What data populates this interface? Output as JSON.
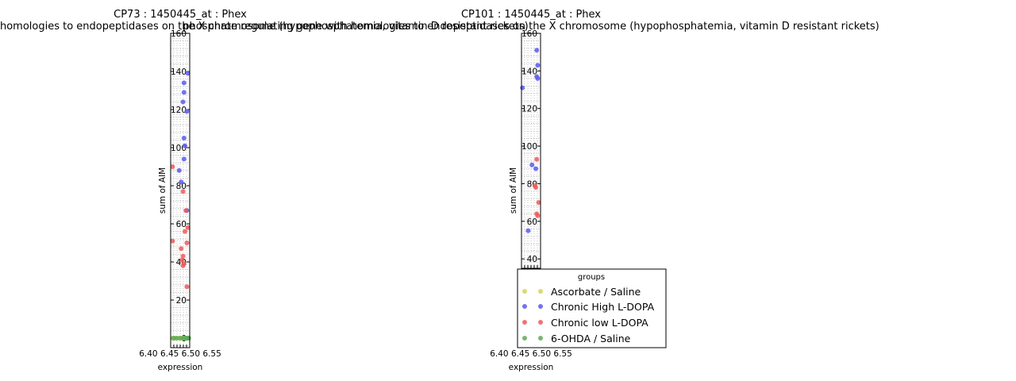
{
  "chart_data": [
    {
      "type": "scatter",
      "title": "CP73 : 1450445_at : Phex",
      "subtitle": "phosphate regulating gene with homologies to endopeptidases on the X chromosome (hypophosphatemia, vitamin D resistant rickets)",
      "xlabel": "expression",
      "ylabel": "sum of AIM",
      "ylim": [
        -5,
        160
      ],
      "yticks": [
        0,
        20,
        40,
        60,
        80,
        100,
        120,
        140,
        160
      ],
      "xlim": [
        6.38,
        6.58
      ],
      "xticks_text": "6.40 6.45 6.50 6.55",
      "grid": true,
      "series": [
        {
          "name": "Ascorbate / Saline",
          "color": "#d4d45a",
          "points": [
            [
              6.4,
              0
            ],
            [
              6.42,
              0
            ],
            [
              6.45,
              0
            ],
            [
              6.47,
              0
            ],
            [
              6.5,
              0
            ],
            [
              6.52,
              0
            ]
          ]
        },
        {
          "name": "Chronic High L-DOPA",
          "color": "#5b5bf0",
          "points": [
            [
              6.56,
              139
            ],
            [
              6.52,
              134
            ],
            [
              6.52,
              129
            ],
            [
              6.51,
              124
            ],
            [
              6.55,
              119
            ],
            [
              6.52,
              105
            ],
            [
              6.53,
              101
            ],
            [
              6.52,
              94
            ],
            [
              6.47,
              88
            ],
            [
              6.49,
              82
            ],
            [
              6.55,
              67
            ]
          ]
        },
        {
          "name": "Chronic low L-DOPA",
          "color": "#f05b5b",
          "points": [
            [
              6.4,
              90
            ],
            [
              6.51,
              77
            ],
            [
              6.54,
              67
            ],
            [
              6.56,
              58
            ],
            [
              6.53,
              56
            ],
            [
              6.4,
              51
            ],
            [
              6.55,
              50
            ],
            [
              6.49,
              47
            ],
            [
              6.51,
              43
            ],
            [
              6.5,
              41
            ],
            [
              6.52,
              39
            ],
            [
              6.51,
              38
            ],
            [
              6.55,
              27
            ]
          ]
        },
        {
          "name": "6-OHDA / Saline",
          "color": "#5aab5a",
          "points": [
            [
              6.41,
              0
            ],
            [
              6.44,
              0
            ],
            [
              6.48,
              0
            ],
            [
              6.51,
              0
            ],
            [
              6.53,
              0
            ],
            [
              6.54,
              0
            ],
            [
              6.55,
              0
            ],
            [
              6.56,
              0
            ],
            [
              6.57,
              0
            ]
          ]
        }
      ]
    },
    {
      "type": "scatter",
      "title": "CP101 : 1450445_at : Phex",
      "subtitle": "phosphate regulating gene with homologies to endopeptidases on the X chromosome (hypophosphatemia, vitamin D resistant rickets)",
      "xlabel": "expression",
      "ylabel": "sum of AIM",
      "ylim": [
        35,
        160
      ],
      "yticks": [
        40,
        60,
        80,
        100,
        120,
        140,
        160
      ],
      "xlim": [
        6.38,
        6.58
      ],
      "xticks_text": "6.40 6.45 6.50 6.55",
      "grid": true,
      "series": [
        {
          "name": "Chronic High L-DOPA",
          "color": "#5b5bf0",
          "points": [
            [
              6.54,
              151
            ],
            [
              6.55,
              143
            ],
            [
              6.54,
              137
            ],
            [
              6.55,
              136
            ],
            [
              6.39,
              131
            ],
            [
              6.49,
              90
            ],
            [
              6.53,
              88
            ],
            [
              6.45,
              55
            ]
          ]
        },
        {
          "name": "Chronic low L-DOPA",
          "color": "#f05b5b",
          "points": [
            [
              6.54,
              93
            ],
            [
              6.52,
              79
            ],
            [
              6.53,
              78
            ],
            [
              6.56,
              70
            ],
            [
              6.54,
              64
            ],
            [
              6.55,
              63
            ]
          ]
        }
      ]
    }
  ],
  "legend": {
    "title": "groups",
    "entries": [
      {
        "label": "Ascorbate / Saline",
        "color": "#d4d45a"
      },
      {
        "label": "Chronic High L-DOPA",
        "color": "#5b5bf0"
      },
      {
        "label": "Chronic low L-DOPA",
        "color": "#f05b5b"
      },
      {
        "label": "6-OHDA / Saline",
        "color": "#5aab5a"
      }
    ]
  }
}
